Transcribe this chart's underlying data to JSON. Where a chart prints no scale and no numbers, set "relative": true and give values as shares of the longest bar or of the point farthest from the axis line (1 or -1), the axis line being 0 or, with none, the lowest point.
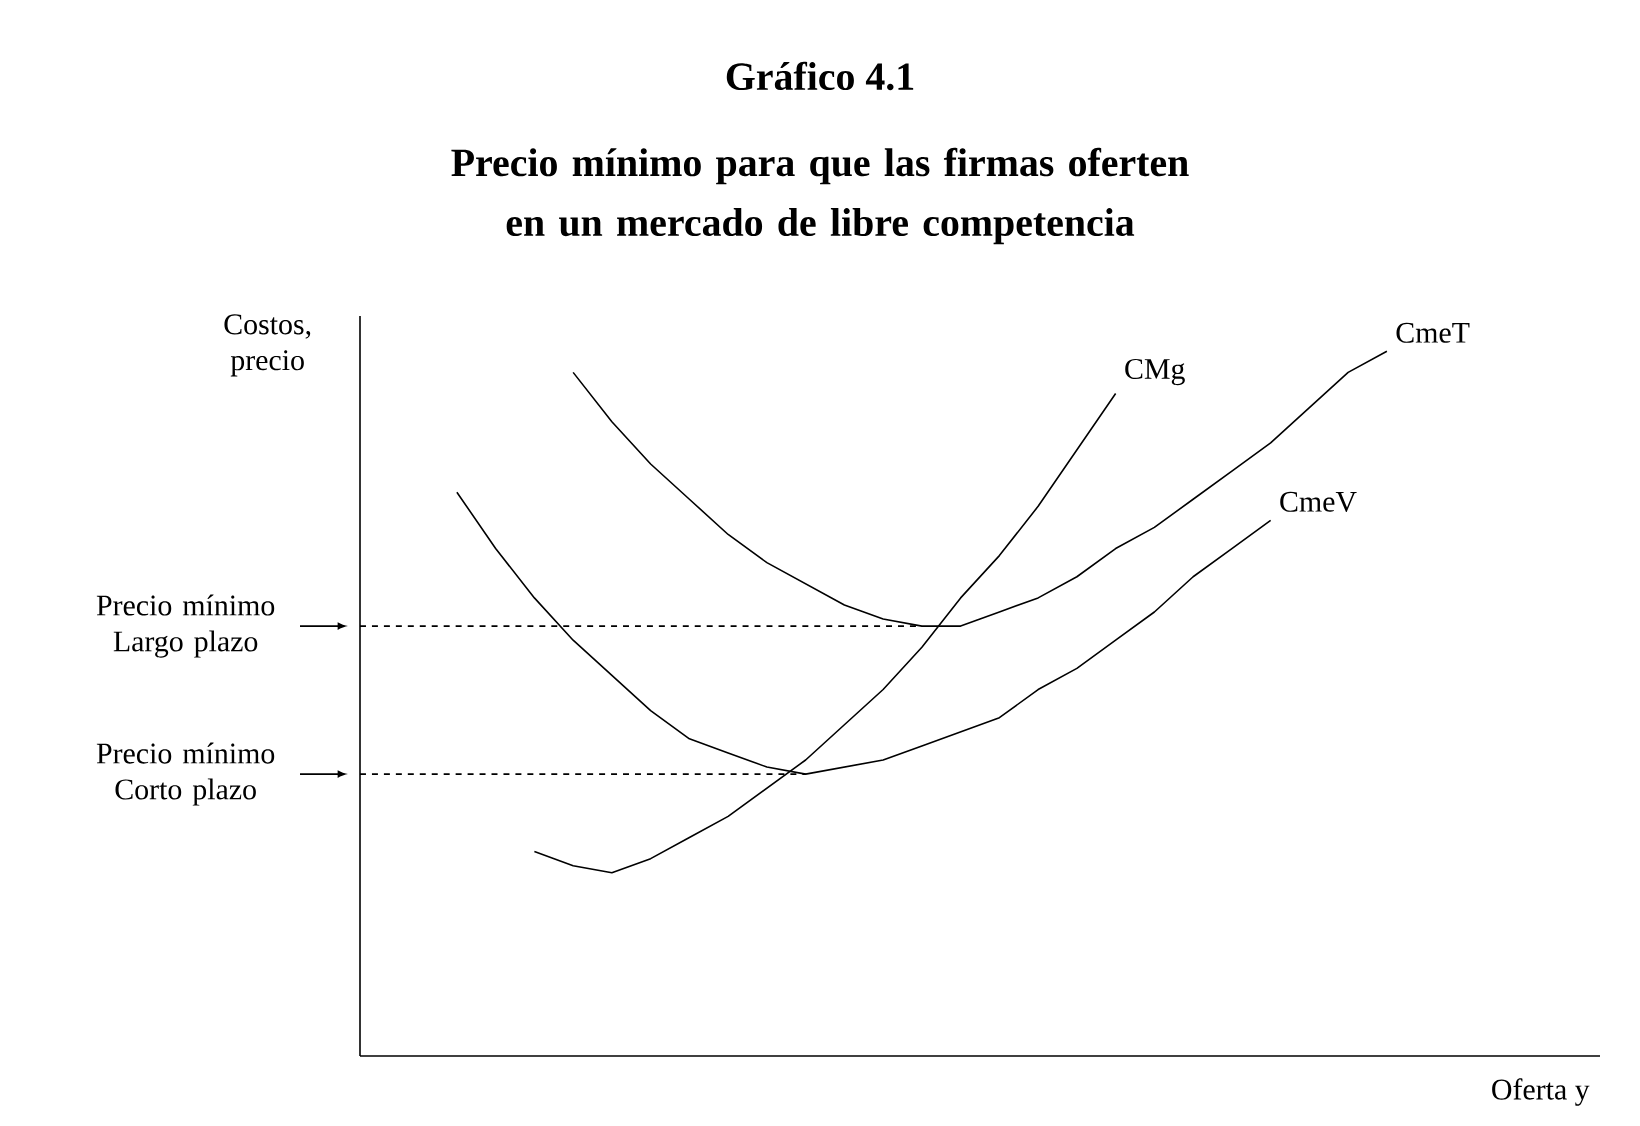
{
  "chart_data": {
    "type": "line",
    "title": "Gráfico 4.1",
    "subtitle": "Precio mínimo para que las firmas oferten en un mercado de libre competencia",
    "xlabel": "Oferta y",
    "ylabel": "Costos, precio",
    "relative": true,
    "marker": "none",
    "line_style": "solid",
    "categories": [
      null,
      null,
      null,
      null,
      null,
      null,
      null,
      null,
      null,
      null,
      null,
      null,
      null,
      null,
      null,
      null,
      null,
      null,
      null,
      null,
      null,
      null,
      null,
      null,
      null,
      null,
      null,
      null,
      null,
      null,
      null,
      null
    ],
    "series": [
      {
        "name": "CMg",
        "color": "#000000",
        "values": [
          null,
          null,
          null,
          null,
          0.29,
          0.27,
          0.26,
          0.28,
          0.31,
          0.34,
          0.38,
          0.42,
          0.47,
          0.52,
          0.58,
          0.65,
          0.71,
          0.78,
          0.86,
          0.94,
          null,
          null,
          null,
          null,
          null,
          null,
          null,
          null,
          null,
          null,
          null,
          null
        ]
      },
      {
        "name": "CmeT",
        "color": "#000000",
        "values": [
          null,
          null,
          null,
          null,
          null,
          0.97,
          0.9,
          0.84,
          0.79,
          0.74,
          0.7,
          0.67,
          0.64,
          0.62,
          0.61,
          0.61,
          0.63,
          0.65,
          0.68,
          0.72,
          0.75,
          0.79,
          0.83,
          0.87,
          0.92,
          0.97,
          1.0,
          null,
          null,
          null,
          null,
          null
        ]
      },
      {
        "name": "CmeV",
        "color": "#000000",
        "values": [
          null,
          null,
          0.8,
          0.72,
          0.65,
          0.59,
          0.54,
          0.49,
          0.45,
          0.43,
          0.41,
          0.4,
          0.41,
          0.42,
          0.44,
          0.46,
          0.48,
          0.52,
          0.55,
          0.59,
          0.63,
          0.68,
          0.72,
          0.76,
          null,
          null,
          null,
          null,
          null,
          null,
          null,
          null
        ]
      }
    ],
    "ref_lines": [
      {
        "axis": "y",
        "value": 0.61,
        "label": "Precio mínimo Largo plazo",
        "line_style": "dashed"
      },
      {
        "axis": "y",
        "value": 0.4,
        "label": "Precio mínimo Corto plazo",
        "line_style": "dashed"
      }
    ]
  }
}
